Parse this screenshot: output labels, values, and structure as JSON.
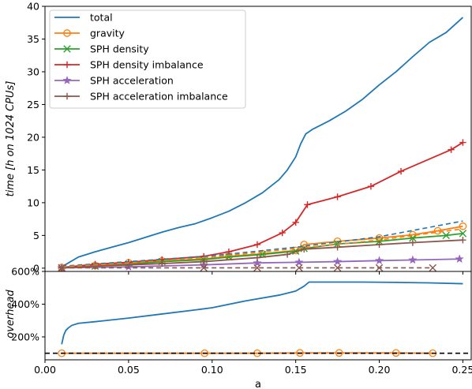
{
  "chart_data": [
    {
      "type": "line",
      "title": "",
      "xlabel": "",
      "ylabel": "time [h on 1024 CPUs]",
      "xlim": [
        0.0,
        0.255
      ],
      "ylim": [
        -0.5,
        40
      ],
      "yticks": [
        "0",
        "5",
        "10",
        "15",
        "20",
        "25",
        "30",
        "35",
        "40"
      ],
      "legend_position": "top-left",
      "series": [
        {
          "name": "total",
          "color": "#1f77b4",
          "marker": "none",
          "style": "solid",
          "x": [
            0.01,
            0.02,
            0.03,
            0.04,
            0.05,
            0.06,
            0.07,
            0.08,
            0.09,
            0.1,
            0.11,
            0.12,
            0.13,
            0.14,
            0.145,
            0.15,
            0.153,
            0.156,
            0.16,
            0.17,
            0.18,
            0.19,
            0.2,
            0.21,
            0.22,
            0.23,
            0.24,
            0.25
          ],
          "y": [
            0.2,
            1.7,
            2.5,
            3.2,
            3.9,
            4.7,
            5.5,
            6.2,
            6.8,
            7.7,
            8.7,
            10.0,
            11.5,
            13.5,
            15.0,
            17.0,
            19.0,
            20.5,
            21.2,
            22.5,
            24.0,
            25.8,
            28.0,
            30.0,
            32.3,
            34.5,
            36.0,
            38.3
          ]
        },
        {
          "name": "gravity",
          "color": "#ff7f0e",
          "marker": "circle",
          "style": "solid",
          "x": [
            0.01,
            0.03,
            0.05,
            0.07,
            0.095,
            0.11,
            0.13,
            0.15,
            0.155,
            0.175,
            0.2,
            0.22,
            0.235,
            0.25
          ],
          "y": [
            0.1,
            0.4,
            0.8,
            1.1,
            1.4,
            1.8,
            2.2,
            2.7,
            3.6,
            4.1,
            4.6,
            5.1,
            5.7,
            6.4
          ]
        },
        {
          "name": "SPH density",
          "color": "#2ca02c",
          "marker": "x",
          "style": "solid",
          "x": [
            0.01,
            0.03,
            0.05,
            0.07,
            0.095,
            0.11,
            0.13,
            0.15,
            0.155,
            0.175,
            0.2,
            0.22,
            0.24,
            0.25
          ],
          "y": [
            0.05,
            0.3,
            0.6,
            1.0,
            1.3,
            1.7,
            2.1,
            2.6,
            3.0,
            3.7,
            4.1,
            4.6,
            5.0,
            5.3
          ]
        },
        {
          "name": "SPH density imbalance",
          "color": "#d62728",
          "marker": "plus",
          "style": "solid",
          "x": [
            0.01,
            0.03,
            0.05,
            0.07,
            0.095,
            0.11,
            0.127,
            0.142,
            0.15,
            0.157,
            0.175,
            0.195,
            0.213,
            0.243,
            0.25
          ],
          "y": [
            0.1,
            0.6,
            0.9,
            1.3,
            1.8,
            2.5,
            3.6,
            5.4,
            7.0,
            9.7,
            10.9,
            12.5,
            14.8,
            18.1,
            19.2
          ]
        },
        {
          "name": "SPH acceleration",
          "color": "#9467bd",
          "marker": "star",
          "style": "solid",
          "x": [
            0.01,
            0.05,
            0.095,
            0.127,
            0.152,
            0.175,
            0.2,
            0.22,
            0.248
          ],
          "y": [
            0.05,
            0.2,
            0.5,
            0.8,
            0.9,
            1.0,
            1.15,
            1.25,
            1.4
          ]
        },
        {
          "name": "SPH acceleration imbalance",
          "color": "#8c564b",
          "marker": "plus",
          "style": "solid",
          "x": [
            0.01,
            0.03,
            0.05,
            0.07,
            0.095,
            0.127,
            0.145,
            0.155,
            0.175,
            0.2,
            0.22,
            0.25
          ],
          "y": [
            0.05,
            0.3,
            0.5,
            0.7,
            1.0,
            1.6,
            2.1,
            2.9,
            3.2,
            3.6,
            3.9,
            4.3
          ]
        },
        {
          "name": "",
          "color": "#1f77b4",
          "marker": "none",
          "style": "dashed",
          "x": [
            0.01,
            0.05,
            0.1,
            0.15,
            0.2,
            0.25
          ],
          "y": [
            0.3,
            1.0,
            1.9,
            3.2,
            4.8,
            7.2
          ]
        },
        {
          "name": "",
          "color": "#ff7f0e",
          "marker": "none",
          "style": "dashed",
          "x": [
            0.01,
            0.05,
            0.1,
            0.15,
            0.2,
            0.25
          ],
          "y": [
            0.2,
            0.8,
            1.7,
            3.0,
            4.3,
            6.0
          ]
        },
        {
          "name": "",
          "color": "#8c564b",
          "marker": "x",
          "style": "dashed",
          "x": [
            0.01,
            0.095,
            0.127,
            0.152,
            0.175,
            0.2,
            0.232
          ],
          "y": [
            0.05,
            0.05,
            0.05,
            0.05,
            0.05,
            0.05,
            0.05
          ]
        }
      ]
    },
    {
      "type": "line",
      "title": "",
      "xlabel": "a",
      "ylabel": "overhead",
      "xlim": [
        0.0,
        0.255
      ],
      "ylim": [
        60,
        600
      ],
      "yticks": [
        "200%",
        "400%",
        "600%"
      ],
      "xticks": [
        "0.00",
        "0.05",
        "0.10",
        "0.15",
        "0.20",
        "0.25"
      ],
      "series": [
        {
          "name": "",
          "color": "#1f77b4",
          "marker": "none",
          "style": "solid",
          "x": [
            0.01,
            0.0112,
            0.0125,
            0.014,
            0.016,
            0.02,
            0.03,
            0.05,
            0.07,
            0.09,
            0.1,
            0.12,
            0.14,
            0.15,
            0.155,
            0.158,
            0.17,
            0.19,
            0.21,
            0.23,
            0.25
          ],
          "y": [
            155,
            210,
            240,
            255,
            270,
            283,
            293,
            315,
            340,
            365,
            378,
            420,
            455,
            480,
            510,
            535,
            535,
            535,
            533,
            530,
            525
          ]
        },
        {
          "name": "",
          "color": "#ff7f0e",
          "marker": "circle",
          "style": "solid",
          "x": [
            0.01,
            0.0955,
            0.127,
            0.1525,
            0.176,
            0.21,
            0.232
          ],
          "y": [
            100,
            100,
            100,
            102,
            102,
            102,
            100
          ]
        },
        {
          "name": "",
          "color": "#000000",
          "marker": "none",
          "style": "dashed",
          "x": [
            0.0,
            0.255
          ],
          "y": [
            100,
            100
          ]
        }
      ]
    }
  ]
}
